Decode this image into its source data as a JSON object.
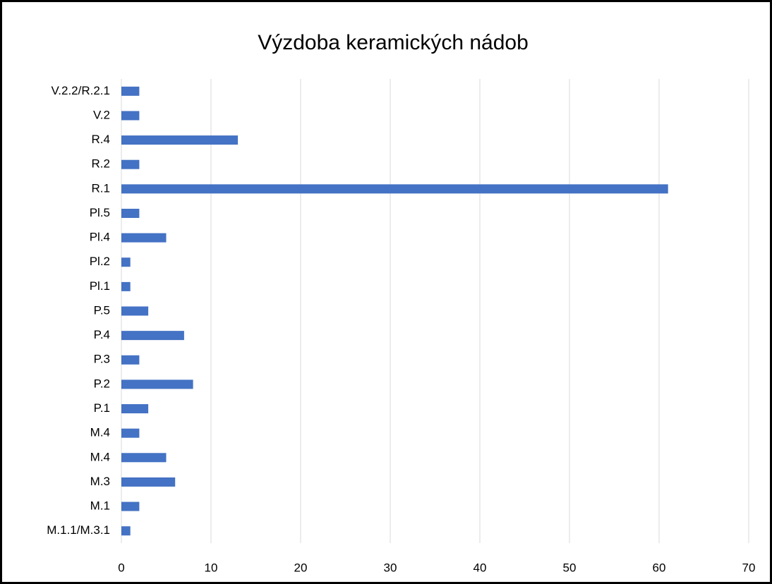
{
  "chart_data": {
    "type": "barh",
    "title": "Výzdoba keramických nádob",
    "categories": [
      "M.1.1/M.3.1",
      "M.1",
      "M.3",
      "M.4",
      "M.4",
      "P.1",
      "P.2",
      "P.3",
      "P.4",
      "P.5",
      "Pl.1",
      "Pl.2",
      "Pl.4",
      "Pl.5",
      "R.1",
      "R.2",
      "R.4",
      "V.2",
      "V.2.2/R.2.1"
    ],
    "values": [
      1,
      2,
      6,
      5,
      2,
      3,
      8,
      2,
      7,
      3,
      1,
      1,
      5,
      2,
      61,
      2,
      13,
      2,
      2
    ],
    "color": "#4472c4",
    "xlim": [
      0,
      70
    ],
    "xticks": [
      0,
      10,
      20,
      30,
      40,
      50,
      60,
      70
    ],
    "grid": true
  }
}
